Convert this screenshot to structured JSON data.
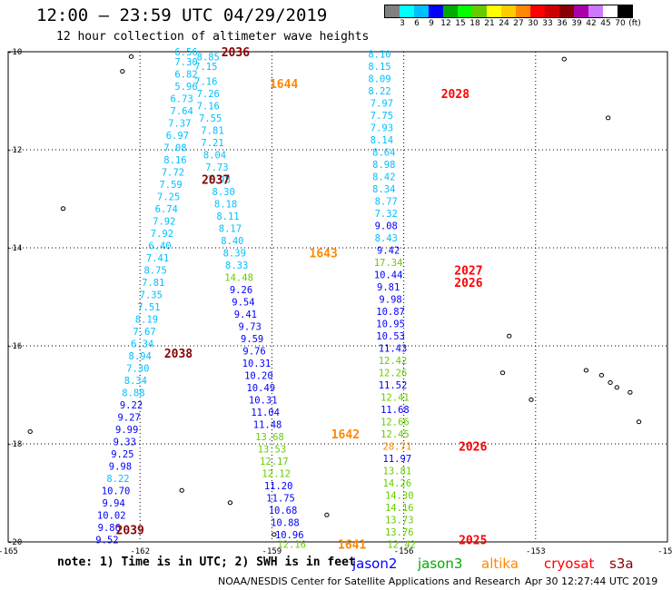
{
  "title": "12:00 – 23:59 UTC 04/29/2019",
  "subtitle": "12 hour collection of altimeter wave heights",
  "colorbar": {
    "colors": [
      "#808080",
      "#00ffff",
      "#00bfff",
      "#0000ff",
      "#00aa00",
      "#00ff00",
      "#66cc00",
      "#ffff00",
      "#ffcc00",
      "#ff8800",
      "#ff0000",
      "#cc0000",
      "#880000",
      "#aa00aa",
      "#cc77ff",
      "#ffffff",
      "#000000"
    ],
    "labels": [
      "3",
      "6",
      "9",
      "12",
      "15",
      "18",
      "21",
      "24",
      "27",
      "30",
      "33",
      "36",
      "39",
      "42",
      "45",
      "70",
      "(ft)"
    ]
  },
  "map": {
    "lon_min": -165,
    "lon_max": -150,
    "lat_max": -10,
    "lat_min": -20,
    "lon_ticks": [
      {
        "v": -165,
        "label": "-165"
      },
      {
        "v": -162,
        "label": "-162"
      },
      {
        "v": -159,
        "label": "-159"
      },
      {
        "v": -156,
        "label": "-156"
      },
      {
        "v": -153,
        "label": "-153"
      },
      {
        "v": -150,
        "label": "-150"
      }
    ],
    "lat_ticks": [
      {
        "v": -10,
        "label": "-10"
      },
      {
        "v": -12,
        "label": "-12"
      },
      {
        "v": -14,
        "label": "-14"
      },
      {
        "v": -16,
        "label": "-16"
      },
      {
        "v": -18,
        "label": "-18"
      },
      {
        "v": -20,
        "label": "-20"
      }
    ]
  },
  "satellite_colors": {
    "jason2": "#0000ff",
    "jason3": "#00aa00",
    "altika": "#ff8800",
    "cryosat": "#ff0000",
    "s3a": "#880000"
  },
  "tracks": [
    {
      "id": "track-a",
      "points": [
        {
          "lon": -160.95,
          "lat": -10.0,
          "v": "6.56",
          "c": "#00bfff"
        },
        {
          "lon": -160.95,
          "lat": -10.2,
          "v": "7.30",
          "c": "#00bfff"
        },
        {
          "lon": -160.95,
          "lat": -10.45,
          "v": "6.82",
          "c": "#00bfff"
        },
        {
          "lon": -160.95,
          "lat": -10.7,
          "v": "5.96",
          "c": "#00bfff"
        },
        {
          "lon": -161.05,
          "lat": -10.95,
          "v": "6.73",
          "c": "#00bfff"
        },
        {
          "lon": -161.05,
          "lat": -11.2,
          "v": "7.64",
          "c": "#00bfff"
        },
        {
          "lon": -161.1,
          "lat": -11.45,
          "v": "7.37",
          "c": "#00bfff"
        },
        {
          "lon": -161.15,
          "lat": -11.7,
          "v": "6.97",
          "c": "#00bfff"
        },
        {
          "lon": -161.2,
          "lat": -11.95,
          "v": "7.08",
          "c": "#00bfff"
        },
        {
          "lon": -161.2,
          "lat": -12.2,
          "v": "8.16",
          "c": "#00bfff"
        },
        {
          "lon": -161.25,
          "lat": -12.45,
          "v": "7.72",
          "c": "#00bfff"
        },
        {
          "lon": -161.3,
          "lat": -12.7,
          "v": "7.59",
          "c": "#00bfff"
        },
        {
          "lon": -161.35,
          "lat": -12.95,
          "v": "7.25",
          "c": "#00bfff"
        },
        {
          "lon": -161.4,
          "lat": -13.2,
          "v": "6.74",
          "c": "#00bfff"
        },
        {
          "lon": -161.45,
          "lat": -13.45,
          "v": "7.92",
          "c": "#00bfff"
        },
        {
          "lon": -161.5,
          "lat": -13.7,
          "v": "7.92",
          "c": "#00bfff"
        },
        {
          "lon": -161.55,
          "lat": -13.95,
          "v": "6.40",
          "c": "#00bfff"
        },
        {
          "lon": -161.6,
          "lat": -14.2,
          "v": "7.41",
          "c": "#00bfff"
        },
        {
          "lon": -161.65,
          "lat": -14.45,
          "v": "8.75",
          "c": "#00bfff"
        },
        {
          "lon": -161.7,
          "lat": -14.7,
          "v": "7.81",
          "c": "#00bfff"
        },
        {
          "lon": -161.75,
          "lat": -14.95,
          "v": "7.35",
          "c": "#00bfff"
        },
        {
          "lon": -161.8,
          "lat": -15.2,
          "v": "7.51",
          "c": "#00bfff"
        },
        {
          "lon": -161.85,
          "lat": -15.45,
          "v": "8.19",
          "c": "#00bfff"
        },
        {
          "lon": -161.9,
          "lat": -15.7,
          "v": "7.67",
          "c": "#00bfff"
        },
        {
          "lon": -161.95,
          "lat": -15.95,
          "v": "6.34",
          "c": "#00bfff"
        },
        {
          "lon": -162.0,
          "lat": -16.2,
          "v": "8.94",
          "c": "#00bfff"
        },
        {
          "lon": -162.05,
          "lat": -16.45,
          "v": "7.30",
          "c": "#00bfff"
        },
        {
          "lon": -162.1,
          "lat": -16.7,
          "v": "8.34",
          "c": "#00bfff"
        },
        {
          "lon": -162.15,
          "lat": -16.95,
          "v": "8.88",
          "c": "#00bfff"
        },
        {
          "lon": -162.2,
          "lat": -17.2,
          "v": "9.22",
          "c": "#0000ff"
        },
        {
          "lon": -162.25,
          "lat": -17.45,
          "v": "9.27",
          "c": "#0000ff"
        },
        {
          "lon": -162.3,
          "lat": -17.7,
          "v": "9.99",
          "c": "#0000ff"
        },
        {
          "lon": -162.35,
          "lat": -17.95,
          "v": "9.33",
          "c": "#0000ff"
        },
        {
          "lon": -162.4,
          "lat": -18.2,
          "v": "9.25",
          "c": "#0000ff"
        },
        {
          "lon": -162.45,
          "lat": -18.45,
          "v": "9.98",
          "c": "#0000ff"
        },
        {
          "lon": -162.5,
          "lat": -18.7,
          "v": "8.22",
          "c": "#00bfff"
        },
        {
          "lon": -162.55,
          "lat": -18.95,
          "v": "10.70",
          "c": "#0000ff"
        },
        {
          "lon": -162.6,
          "lat": -19.2,
          "v": "9.94",
          "c": "#0000ff"
        },
        {
          "lon": -162.65,
          "lat": -19.45,
          "v": "10.02",
          "c": "#0000ff"
        },
        {
          "lon": -162.7,
          "lat": -19.7,
          "v": "9.86",
          "c": "#0000ff"
        },
        {
          "lon": -162.75,
          "lat": -19.95,
          "v": "9.52",
          "c": "#0000ff"
        },
        {
          "lon": -162.8,
          "lat": -20.2,
          "v": "9.11",
          "c": "#0000ff"
        },
        {
          "lon": -162.85,
          "lat": -20.45,
          "v": "9.07",
          "c": "#0000ff"
        }
      ]
    },
    {
      "id": "track-b",
      "points": [
        {
          "lon": -160.45,
          "lat": -10.1,
          "v": "8.85",
          "c": "#00bfff"
        },
        {
          "lon": -160.5,
          "lat": -10.3,
          "v": "7.15",
          "c": "#00bfff"
        },
        {
          "lon": -160.5,
          "lat": -10.6,
          "v": "7.16",
          "c": "#00bfff"
        },
        {
          "lon": -160.45,
          "lat": -10.85,
          "v": "7.26",
          "c": "#00bfff"
        },
        {
          "lon": -160.45,
          "lat": -11.1,
          "v": "7.16",
          "c": "#00bfff"
        },
        {
          "lon": -160.4,
          "lat": -11.35,
          "v": "7.55",
          "c": "#00bfff"
        },
        {
          "lon": -160.35,
          "lat": -11.6,
          "v": "7.81",
          "c": "#00bfff"
        },
        {
          "lon": -160.35,
          "lat": -11.85,
          "v": "7.21",
          "c": "#00bfff"
        },
        {
          "lon": -160.3,
          "lat": -12.1,
          "v": "8.04",
          "c": "#00bfff"
        },
        {
          "lon": -160.25,
          "lat": -12.35,
          "v": "7.73",
          "c": "#00bfff"
        },
        {
          "lon": -160.2,
          "lat": -12.6,
          "v": "7.98",
          "c": "#00bfff"
        },
        {
          "lon": -160.1,
          "lat": -12.85,
          "v": "8.30",
          "c": "#00bfff"
        },
        {
          "lon": -160.05,
          "lat": -13.1,
          "v": "8.18",
          "c": "#00bfff"
        },
        {
          "lon": -160.0,
          "lat": -13.35,
          "v": "8.11",
          "c": "#00bfff"
        },
        {
          "lon": -159.95,
          "lat": -13.6,
          "v": "8.17",
          "c": "#00bfff"
        },
        {
          "lon": -159.9,
          "lat": -13.85,
          "v": "8.40",
          "c": "#00bfff"
        },
        {
          "lon": -159.85,
          "lat": -14.1,
          "v": "8.39",
          "c": "#00bfff"
        },
        {
          "lon": -159.8,
          "lat": -14.35,
          "v": "8.33",
          "c": "#00bfff"
        },
        {
          "lon": -159.75,
          "lat": -14.6,
          "v": "14.48",
          "c": "#66cc00"
        },
        {
          "lon": -159.7,
          "lat": -14.85,
          "v": "9.26",
          "c": "#0000ff"
        },
        {
          "lon": -159.65,
          "lat": -15.1,
          "v": "9.54",
          "c": "#0000ff"
        },
        {
          "lon": -159.6,
          "lat": -15.35,
          "v": "9.41",
          "c": "#0000ff"
        },
        {
          "lon": -159.5,
          "lat": -15.6,
          "v": "9.73",
          "c": "#0000ff"
        },
        {
          "lon": -159.45,
          "lat": -15.85,
          "v": "9.59",
          "c": "#0000ff"
        },
        {
          "lon": -159.4,
          "lat": -16.1,
          "v": "9.76",
          "c": "#0000ff"
        },
        {
          "lon": -159.35,
          "lat": -16.35,
          "v": "10.31",
          "c": "#0000ff"
        },
        {
          "lon": -159.3,
          "lat": -16.6,
          "v": "10.20",
          "c": "#0000ff"
        },
        {
          "lon": -159.25,
          "lat": -16.85,
          "v": "10.49",
          "c": "#0000ff"
        },
        {
          "lon": -159.2,
          "lat": -17.1,
          "v": "10.31",
          "c": "#0000ff"
        },
        {
          "lon": -159.15,
          "lat": -17.35,
          "v": "11.04",
          "c": "#0000ff"
        },
        {
          "lon": -159.1,
          "lat": -17.6,
          "v": "11.48",
          "c": "#0000ff"
        },
        {
          "lon": -159.05,
          "lat": -17.85,
          "v": "13.68",
          "c": "#66cc00"
        },
        {
          "lon": -159.0,
          "lat": -18.1,
          "v": "13.53",
          "c": "#66cc00"
        },
        {
          "lon": -158.95,
          "lat": -18.35,
          "v": "12.17",
          "c": "#66cc00"
        },
        {
          "lon": -158.9,
          "lat": -18.6,
          "v": "12.12",
          "c": "#66cc00"
        },
        {
          "lon": -158.85,
          "lat": -18.85,
          "v": "11.20",
          "c": "#0000ff"
        },
        {
          "lon": -158.8,
          "lat": -19.1,
          "v": "11.75",
          "c": "#0000ff"
        },
        {
          "lon": -158.75,
          "lat": -19.35,
          "v": "10.68",
          "c": "#0000ff"
        },
        {
          "lon": -158.7,
          "lat": -19.6,
          "v": "10.88",
          "c": "#0000ff"
        },
        {
          "lon": -158.6,
          "lat": -19.85,
          "v": "10.96",
          "c": "#0000ff"
        },
        {
          "lon": -158.55,
          "lat": -20.05,
          "v": "12.16",
          "c": "#66cc00"
        }
      ]
    },
    {
      "id": "track-c",
      "points": [
        {
          "lon": -156.55,
          "lat": -10.05,
          "v": "8.10",
          "c": "#00bfff"
        },
        {
          "lon": -156.55,
          "lat": -10.3,
          "v": "8.15",
          "c": "#00bfff"
        },
        {
          "lon": -156.55,
          "lat": -10.55,
          "v": "8.09",
          "c": "#00bfff"
        },
        {
          "lon": -156.55,
          "lat": -10.8,
          "v": "8.22",
          "c": "#00bfff"
        },
        {
          "lon": -156.5,
          "lat": -11.05,
          "v": "7.97",
          "c": "#00bfff"
        },
        {
          "lon": -156.5,
          "lat": -11.3,
          "v": "7.75",
          "c": "#00bfff"
        },
        {
          "lon": -156.5,
          "lat": -11.55,
          "v": "7.93",
          "c": "#00bfff"
        },
        {
          "lon": -156.5,
          "lat": -11.8,
          "v": "8.14",
          "c": "#00bfff"
        },
        {
          "lon": -156.45,
          "lat": -12.05,
          "v": "8.64",
          "c": "#00bfff"
        },
        {
          "lon": -156.45,
          "lat": -12.3,
          "v": "8.98",
          "c": "#00bfff"
        },
        {
          "lon": -156.45,
          "lat": -12.55,
          "v": "8.42",
          "c": "#00bfff"
        },
        {
          "lon": -156.45,
          "lat": -12.8,
          "v": "8.34",
          "c": "#00bfff"
        },
        {
          "lon": -156.4,
          "lat": -13.05,
          "v": "8.77",
          "c": "#00bfff"
        },
        {
          "lon": -156.4,
          "lat": -13.3,
          "v": "7.32",
          "c": "#00bfff"
        },
        {
          "lon": -156.4,
          "lat": -13.55,
          "v": "9.08",
          "c": "#0000ff"
        },
        {
          "lon": -156.4,
          "lat": -13.8,
          "v": "8.43",
          "c": "#00bfff"
        },
        {
          "lon": -156.35,
          "lat": -14.05,
          "v": "9.42",
          "c": "#0000ff"
        },
        {
          "lon": -156.35,
          "lat": -14.3,
          "v": "17.34",
          "c": "#66cc00"
        },
        {
          "lon": -156.35,
          "lat": -14.55,
          "v": "10.44",
          "c": "#0000ff"
        },
        {
          "lon": -156.35,
          "lat": -14.8,
          "v": "9.81",
          "c": "#0000ff"
        },
        {
          "lon": -156.3,
          "lat": -15.05,
          "v": "9.98",
          "c": "#0000ff"
        },
        {
          "lon": -156.3,
          "lat": -15.3,
          "v": "10.87",
          "c": "#0000ff"
        },
        {
          "lon": -156.3,
          "lat": -15.55,
          "v": "10.95",
          "c": "#0000ff"
        },
        {
          "lon": -156.3,
          "lat": -15.8,
          "v": "10.53",
          "c": "#0000ff"
        },
        {
          "lon": -156.25,
          "lat": -16.05,
          "v": "11.43",
          "c": "#0000ff"
        },
        {
          "lon": -156.25,
          "lat": -16.3,
          "v": "12.42",
          "c": "#66cc00"
        },
        {
          "lon": -156.25,
          "lat": -16.55,
          "v": "12.26",
          "c": "#66cc00"
        },
        {
          "lon": -156.25,
          "lat": -16.8,
          "v": "11.52",
          "c": "#0000ff"
        },
        {
          "lon": -156.2,
          "lat": -17.05,
          "v": "12.41",
          "c": "#66cc00"
        },
        {
          "lon": -156.2,
          "lat": -17.3,
          "v": "11.68",
          "c": "#0000ff"
        },
        {
          "lon": -156.2,
          "lat": -17.55,
          "v": "12.66",
          "c": "#66cc00"
        },
        {
          "lon": -156.2,
          "lat": -17.8,
          "v": "12.45",
          "c": "#66cc00"
        },
        {
          "lon": -156.15,
          "lat": -18.05,
          "v": "28.71",
          "c": "#ff8800"
        },
        {
          "lon": -156.15,
          "lat": -18.3,
          "v": "11.97",
          "c": "#0000ff"
        },
        {
          "lon": -156.15,
          "lat": -18.55,
          "v": "13.81",
          "c": "#66cc00"
        },
        {
          "lon": -156.15,
          "lat": -18.8,
          "v": "14.26",
          "c": "#66cc00"
        },
        {
          "lon": -156.1,
          "lat": -19.05,
          "v": "14.30",
          "c": "#66cc00"
        },
        {
          "lon": -156.1,
          "lat": -19.3,
          "v": "14.16",
          "c": "#66cc00"
        },
        {
          "lon": -156.1,
          "lat": -19.55,
          "v": "13.73",
          "c": "#66cc00"
        },
        {
          "lon": -156.1,
          "lat": -19.8,
          "v": "13.76",
          "c": "#66cc00"
        },
        {
          "lon": -156.05,
          "lat": -20.05,
          "v": "12.42",
          "c": "#66cc00"
        },
        {
          "lon": -156.05,
          "lat": -20.3,
          "v": "13.32",
          "c": "#66cc00"
        },
        {
          "lon": -156.05,
          "lat": -20.55,
          "v": "13.07",
          "c": "#66cc00"
        },
        {
          "lon": -156.05,
          "lat": -20.8,
          "v": "15.00",
          "c": "#66cc00"
        }
      ]
    }
  ],
  "time_labels": [
    {
      "text": "2036",
      "lon": -160.15,
      "lat": -10.0,
      "c": "#880000"
    },
    {
      "text": "1644",
      "lon": -159.05,
      "lat": -10.65,
      "c": "#ff8800"
    },
    {
      "text": "2028",
      "lon": -155.15,
      "lat": -10.85,
      "c": "#ff0000"
    },
    {
      "text": "2037",
      "lon": -160.6,
      "lat": -12.6,
      "c": "#880000"
    },
    {
      "text": "1643",
      "lon": -158.15,
      "lat": -14.1,
      "c": "#ff8800"
    },
    {
      "text": "2027",
      "lon": -154.85,
      "lat": -14.45,
      "c": "#ff0000"
    },
    {
      "text": "2026",
      "lon": -154.85,
      "lat": -14.7,
      "c": "#ff0000"
    },
    {
      "text": "2038",
      "lon": -161.45,
      "lat": -16.15,
      "c": "#880000"
    },
    {
      "text": "1642",
      "lon": -157.65,
      "lat": -17.8,
      "c": "#ff8800"
    },
    {
      "text": "2026",
      "lon": -154.75,
      "lat": -18.05,
      "c": "#ff0000"
    },
    {
      "text": "2039",
      "lon": -162.55,
      "lat": -19.75,
      "c": "#880000"
    },
    {
      "text": "2025",
      "lon": -154.75,
      "lat": -19.95,
      "c": "#ff0000"
    },
    {
      "text": "1641",
      "lon": -157.5,
      "lat": -20.05,
      "c": "#ff8800"
    }
  ],
  "legend": {
    "note": "note: 1) Time is in UTC; 2) SWH is in feet",
    "items": [
      {
        "key": "jason2",
        "label": "jason2",
        "c": "#0000ff"
      },
      {
        "key": "jason3",
        "label": "jason3",
        "c": "#00aa00"
      },
      {
        "key": "altika",
        "label": "altika",
        "c": "#ff8800"
      },
      {
        "key": "cryosat",
        "label": "cryosat",
        "c": "#ff0000"
      },
      {
        "key": "s3a",
        "label": "s3a",
        "c": "#880000"
      }
    ]
  },
  "footer": "NOAA/NESDIS Center for Satellite Applications and Research",
  "footer_date": "Apr 30 12:27:44 UTC 2019"
}
